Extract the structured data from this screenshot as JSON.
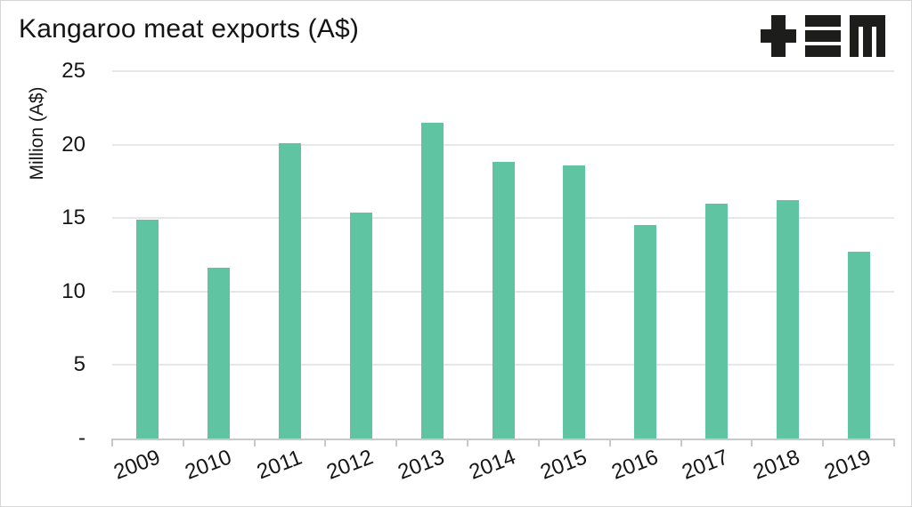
{
  "header": {
    "title": "Kangaroo meat exports (A$)",
    "logo": "tem-logo"
  },
  "chart_data": {
    "type": "bar",
    "title": "Kangaroo meat exports (A$)",
    "xlabel": "",
    "ylabel": "Million (A$)",
    "categories": [
      "2009",
      "2010",
      "2011",
      "2012",
      "2013",
      "2014",
      "2015",
      "2016",
      "2017",
      "2018",
      "2019"
    ],
    "values": [
      14.9,
      11.6,
      20.1,
      15.4,
      21.5,
      18.8,
      18.6,
      14.5,
      16.0,
      16.2,
      12.7
    ],
    "series_name": "Kangaroo meat exports",
    "ylim": [
      0,
      25
    ],
    "yticks": [
      {
        "value": 25,
        "label": "25"
      },
      {
        "value": 20,
        "label": "20"
      },
      {
        "value": 15,
        "label": "15"
      },
      {
        "value": 10,
        "label": "10"
      },
      {
        "value": 5,
        "label": "5"
      },
      {
        "value": 0,
        "label": "-"
      }
    ],
    "grid": "horizontal",
    "legend": "none",
    "xtick_rotation_deg": -21,
    "style": {
      "bar_color": "#5fc4a2",
      "gridline_color": "#e7e7e7",
      "axis_color": "#c9c9c9",
      "text_color": "#161616",
      "logo_color": "#1d1d1b",
      "background": "#ffffff"
    }
  }
}
